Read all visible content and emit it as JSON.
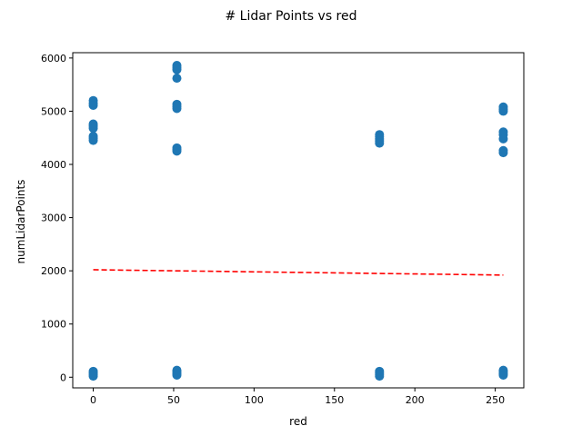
{
  "chart_data": {
    "type": "scatter",
    "title": "# Lidar Points vs red",
    "xlabel": "red",
    "ylabel": "numLidarPoints",
    "xlim": [
      -12.75,
      267.75
    ],
    "ylim": [
      -200,
      6100
    ],
    "xticks": [
      0,
      50,
      100,
      150,
      200,
      250
    ],
    "yticks": [
      0,
      1000,
      2000,
      3000,
      4000,
      5000,
      6000
    ],
    "grid": false,
    "series": [
      {
        "kind": "scatter",
        "color": "#1f77b4",
        "points": [
          {
            "x": 0,
            "y": 5200
          },
          {
            "x": 0,
            "y": 5150
          },
          {
            "x": 0,
            "y": 5110
          },
          {
            "x": 0,
            "y": 4760
          },
          {
            "x": 0,
            "y": 4720
          },
          {
            "x": 0,
            "y": 4680
          },
          {
            "x": 0,
            "y": 4530
          },
          {
            "x": 0,
            "y": 4490
          },
          {
            "x": 0,
            "y": 4450
          },
          {
            "x": 0,
            "y": 110
          },
          {
            "x": 0,
            "y": 80
          },
          {
            "x": 0,
            "y": 50
          },
          {
            "x": 0,
            "y": 20
          },
          {
            "x": 52,
            "y": 5860
          },
          {
            "x": 52,
            "y": 5820
          },
          {
            "x": 52,
            "y": 5780
          },
          {
            "x": 52,
            "y": 5620
          },
          {
            "x": 52,
            "y": 5130
          },
          {
            "x": 52,
            "y": 5090
          },
          {
            "x": 52,
            "y": 5050
          },
          {
            "x": 52,
            "y": 4310
          },
          {
            "x": 52,
            "y": 4280
          },
          {
            "x": 52,
            "y": 4250
          },
          {
            "x": 52,
            "y": 130
          },
          {
            "x": 52,
            "y": 100
          },
          {
            "x": 52,
            "y": 70
          },
          {
            "x": 52,
            "y": 40
          },
          {
            "x": 178,
            "y": 4560
          },
          {
            "x": 178,
            "y": 4520
          },
          {
            "x": 178,
            "y": 4480
          },
          {
            "x": 178,
            "y": 4440
          },
          {
            "x": 178,
            "y": 4400
          },
          {
            "x": 178,
            "y": 110
          },
          {
            "x": 178,
            "y": 80
          },
          {
            "x": 178,
            "y": 50
          },
          {
            "x": 178,
            "y": 20
          },
          {
            "x": 255,
            "y": 5080
          },
          {
            "x": 255,
            "y": 5040
          },
          {
            "x": 255,
            "y": 5000
          },
          {
            "x": 255,
            "y": 4610
          },
          {
            "x": 255,
            "y": 4560
          },
          {
            "x": 255,
            "y": 4480
          },
          {
            "x": 255,
            "y": 4260
          },
          {
            "x": 255,
            "y": 4220
          },
          {
            "x": 255,
            "y": 130
          },
          {
            "x": 255,
            "y": 100
          },
          {
            "x": 255,
            "y": 70
          },
          {
            "x": 255,
            "y": 40
          }
        ]
      },
      {
        "kind": "trend-line",
        "style": "dashed",
        "color": "#ff0000",
        "points": [
          {
            "x": 0,
            "y": 2020
          },
          {
            "x": 255,
            "y": 1920
          }
        ]
      }
    ]
  }
}
